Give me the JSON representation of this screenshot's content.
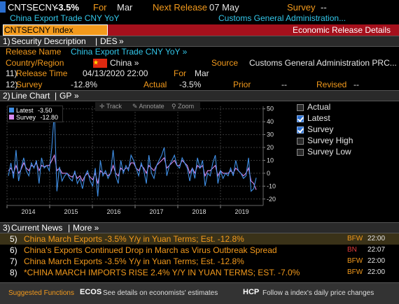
{
  "header": {
    "ticker": "CNTSECNY",
    "change": "-3.5%",
    "for_label": "For",
    "for_value": "Mar",
    "next_release_label": "Next Release",
    "next_release_value": "07 May",
    "survey_label": "Survey",
    "survey_value": "--",
    "subtitle": "China Export Trade CNY YoY",
    "agency": "Customs General Administration...",
    "index_label": "CNTSECNY Index",
    "tab_title": "Economic Release Details"
  },
  "security": {
    "section_num": "1)",
    "section_title": "Security Description",
    "section_code": "DES",
    "release_name_label": "Release Name",
    "release_name_value": "China Export Trade CNY YoY »",
    "country_label": "Country/Region",
    "country_value": "China »",
    "source_label": "Source",
    "source_value": "Customs General Administration PRC...",
    "release_time_num": "11)",
    "release_time_label": "Release Time",
    "release_time_value": "04/13/2020 22:00",
    "for_label": "For",
    "for_value": "Mar",
    "survey_num": "12)",
    "survey_label": "Survey",
    "survey_value": "-12.8%",
    "actual_label": "Actual",
    "actual_value": "-3.5%",
    "prior_label": "Prior",
    "prior_value": "--",
    "revised_label": "Revised",
    "revised_value": "--"
  },
  "chart_section": {
    "section_num": "2)",
    "section_title": "Line Chart",
    "section_code": "GP",
    "toolbar": {
      "track": "Track",
      "annotate": "Annotate",
      "zoom": "Zoom"
    },
    "inner_legend": [
      {
        "name": "Latest",
        "value": "-3.50",
        "color": "#3f8fe6"
      },
      {
        "name": "Survey",
        "value": "-12.80",
        "color": "#d98cf0"
      }
    ],
    "side_legend": [
      {
        "label": "Actual",
        "checked": false,
        "color": "#e6e6e6"
      },
      {
        "label": "Latest",
        "checked": true,
        "color": "#e6e6e6"
      },
      {
        "label": "Survey",
        "checked": true,
        "color": "#e6e6e6"
      },
      {
        "label": "Survey High",
        "checked": false,
        "color": "#e6e6e6"
      },
      {
        "label": "Survey Low",
        "checked": false,
        "color": "#e6e6e6"
      }
    ]
  },
  "chart_data": {
    "type": "line",
    "title": "",
    "xlabel": "",
    "ylabel": "",
    "x_tick_labels": [
      "2014",
      "2015",
      "2016",
      "2017",
      "2018",
      "2019"
    ],
    "y_tick_labels": [
      "50",
      "40",
      "30",
      "20",
      "10",
      "0",
      "-10",
      "-20"
    ],
    "ylim": [
      -25,
      52
    ],
    "grid": true,
    "series": [
      {
        "name": "Latest",
        "color": "#3f8fe6",
        "values": [
          -2,
          8,
          -4,
          18,
          -6,
          4,
          12,
          2,
          -2,
          8,
          4,
          10,
          -8,
          12,
          4,
          6,
          2,
          20,
          48,
          -14,
          5,
          -6,
          -2,
          0,
          -4,
          -6,
          2,
          -8,
          -4,
          -12,
          -2,
          2,
          -6,
          -10,
          4,
          -18,
          10,
          -2,
          2,
          -4,
          0,
          18,
          -2,
          -8,
          10,
          0,
          6,
          2,
          14,
          10,
          4,
          -2,
          8,
          2,
          -8,
          14,
          0,
          -4,
          6,
          10,
          14,
          20,
          -2,
          6,
          10,
          14,
          6,
          4,
          12,
          8,
          4,
          -6,
          4,
          -4,
          12,
          4,
          10,
          -10,
          0,
          -2,
          8,
          14,
          -8,
          2,
          -4,
          0,
          -2,
          4,
          -2,
          10,
          2,
          0,
          -4,
          -2,
          12,
          -14,
          -12,
          -3.5
        ]
      },
      {
        "name": "Survey",
        "color": "#d98cf0",
        "values": [
          2,
          4,
          0,
          6,
          0,
          3,
          8,
          4,
          2,
          6,
          5,
          8,
          2,
          6,
          5,
          6,
          6,
          10,
          14,
          2,
          4,
          0,
          0,
          0,
          -2,
          -3,
          0,
          -4,
          -2,
          -6,
          -2,
          0,
          -3,
          -5,
          0,
          -8,
          2,
          0,
          0,
          -2,
          0,
          6,
          0,
          -2,
          4,
          2,
          4,
          4,
          8,
          8,
          4,
          2,
          6,
          4,
          0,
          6,
          4,
          2,
          6,
          8,
          10,
          12,
          4,
          6,
          8,
          10,
          6,
          6,
          10,
          8,
          6,
          0,
          4,
          0,
          6,
          4,
          6,
          -2,
          2,
          2,
          4,
          6,
          -2,
          2,
          0,
          0,
          0,
          2,
          0,
          4,
          2,
          0,
          -2,
          0,
          4,
          -6,
          -8,
          -12.8
        ]
      }
    ]
  },
  "news": {
    "section_num": "3)",
    "section_title": "Current News",
    "section_code": "More »",
    "items": [
      {
        "num": "5)",
        "headline": "China March Exports -3.5% Y/y in Yuan Terms; Est. -12.8%",
        "source": "BFW",
        "time": "22:00"
      },
      {
        "num": "6)",
        "headline": "China's Exports Continued Drop in March as Virus Outbreak Spread",
        "source": "BN",
        "time": "22:07"
      },
      {
        "num": "7)",
        "headline": "China March Exports -3.5% Y/y in Yuan Terms; Est. -12.8%",
        "source": "BFW",
        "time": "22:00"
      },
      {
        "num": "8)",
        "headline": "*CHINA MARCH IMPORTS RISE 2.4% Y/Y IN YUAN TERMS; EST. -7.0%",
        "source": "BFW",
        "time": "22:00"
      }
    ]
  },
  "bottom": {
    "suggested": "Suggested Functions",
    "ecos_code": "ECOS",
    "ecos_desc": "See details on economists' estimates",
    "hcp_code": "HCP",
    "hcp_desc": "Follow a index's daily price changes"
  }
}
